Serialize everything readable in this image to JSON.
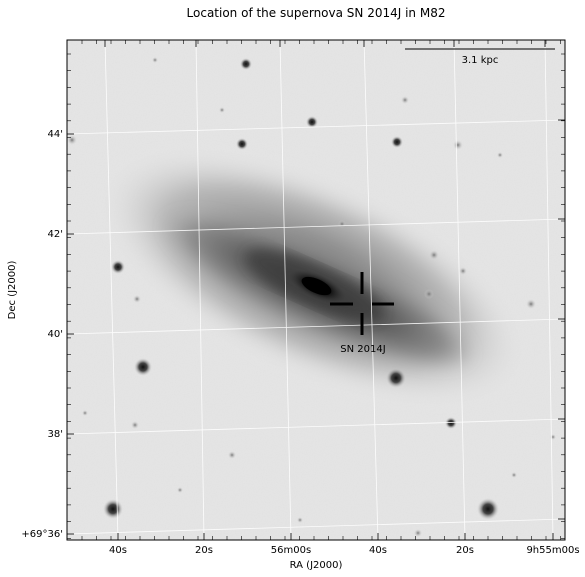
{
  "figure": {
    "title": "Location of the supernova SN 2014J in M82",
    "xlabel": "RA (J2000)",
    "ylabel": "Dec (J2000)",
    "x_tick_labels": [
      "40s",
      "20s",
      "56m00s",
      "40s",
      "20s",
      "9h55m00s"
    ],
    "y_tick_labels": [
      "44'",
      "42'",
      "40'",
      "38'",
      "+69°36'"
    ],
    "scale_bar_label": "3.1 kpc",
    "marker_label": "SN 2014J"
  },
  "image": {
    "colormap": "grayscale inverted",
    "background_color": "#e6e6e6",
    "galaxy_core_color": "#0a0a0a",
    "grid": true
  }
}
